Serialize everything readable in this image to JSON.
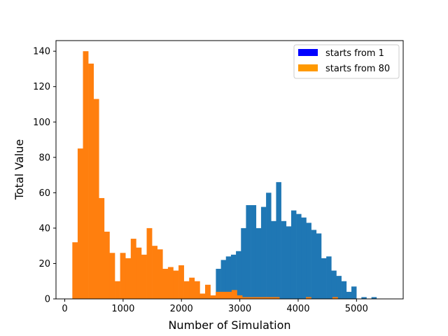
{
  "chart_data": {
    "type": "bar",
    "subtype": "histogram-overlay",
    "title": "",
    "xlabel": "Number of Simulation",
    "ylabel": "Total Value",
    "xlim": [
      -150,
      5800
    ],
    "ylim": [
      0,
      146
    ],
    "xticks": [
      0,
      1000,
      2000,
      3000,
      4000,
      5000
    ],
    "yticks": [
      0,
      20,
      40,
      60,
      80,
      100,
      120,
      140
    ],
    "legend": {
      "placement": "top-right",
      "entries": [
        {
          "label": "starts from 1",
          "color": "#0000ff"
        },
        {
          "label": "starts from 80",
          "color": "#ff9900"
        }
      ]
    },
    "series": [
      {
        "name": "starts from 1",
        "color": "#1f77b4",
        "bin_width": 86,
        "x_left": [
          2590,
          2676,
          2762,
          2848,
          2934,
          3020,
          3106,
          3192,
          3278,
          3364,
          3450,
          3536,
          3622,
          3708,
          3794,
          3880,
          3966,
          4052,
          4138,
          4224,
          4310,
          4396,
          4482,
          4568,
          4654,
          4740,
          4826,
          4912,
          5084,
          5256
        ],
        "values": [
          17,
          22,
          24,
          25,
          27,
          40,
          53,
          53,
          40,
          52,
          60,
          44,
          66,
          44,
          41,
          50,
          48,
          46,
          43,
          39,
          37,
          23,
          24,
          16,
          13,
          10,
          4,
          7,
          1,
          1
        ]
      },
      {
        "name": "starts from 80",
        "color": "#ff7f0e",
        "bin_width": 91,
        "x_left": [
          130,
          221,
          312,
          403,
          494,
          585,
          676,
          767,
          858,
          949,
          1040,
          1131,
          1222,
          1313,
          1404,
          1495,
          1586,
          1677,
          1768,
          1859,
          1950,
          2041,
          2132,
          2223,
          2314,
          2405,
          2496,
          2587,
          2678,
          2769,
          2860,
          2951,
          3042,
          3133,
          3224,
          3315,
          3406,
          3497,
          3588,
          4132,
          4587
        ],
        "values": [
          32,
          85,
          140,
          133,
          113,
          57,
          38,
          26,
          10,
          26,
          23,
          34,
          29,
          25,
          40,
          30,
          28,
          17,
          18,
          16,
          19,
          10,
          12,
          10,
          3,
          8,
          2,
          4,
          4,
          4,
          5,
          2,
          1,
          1,
          1,
          1,
          1,
          1,
          1,
          1,
          1
        ]
      }
    ]
  }
}
